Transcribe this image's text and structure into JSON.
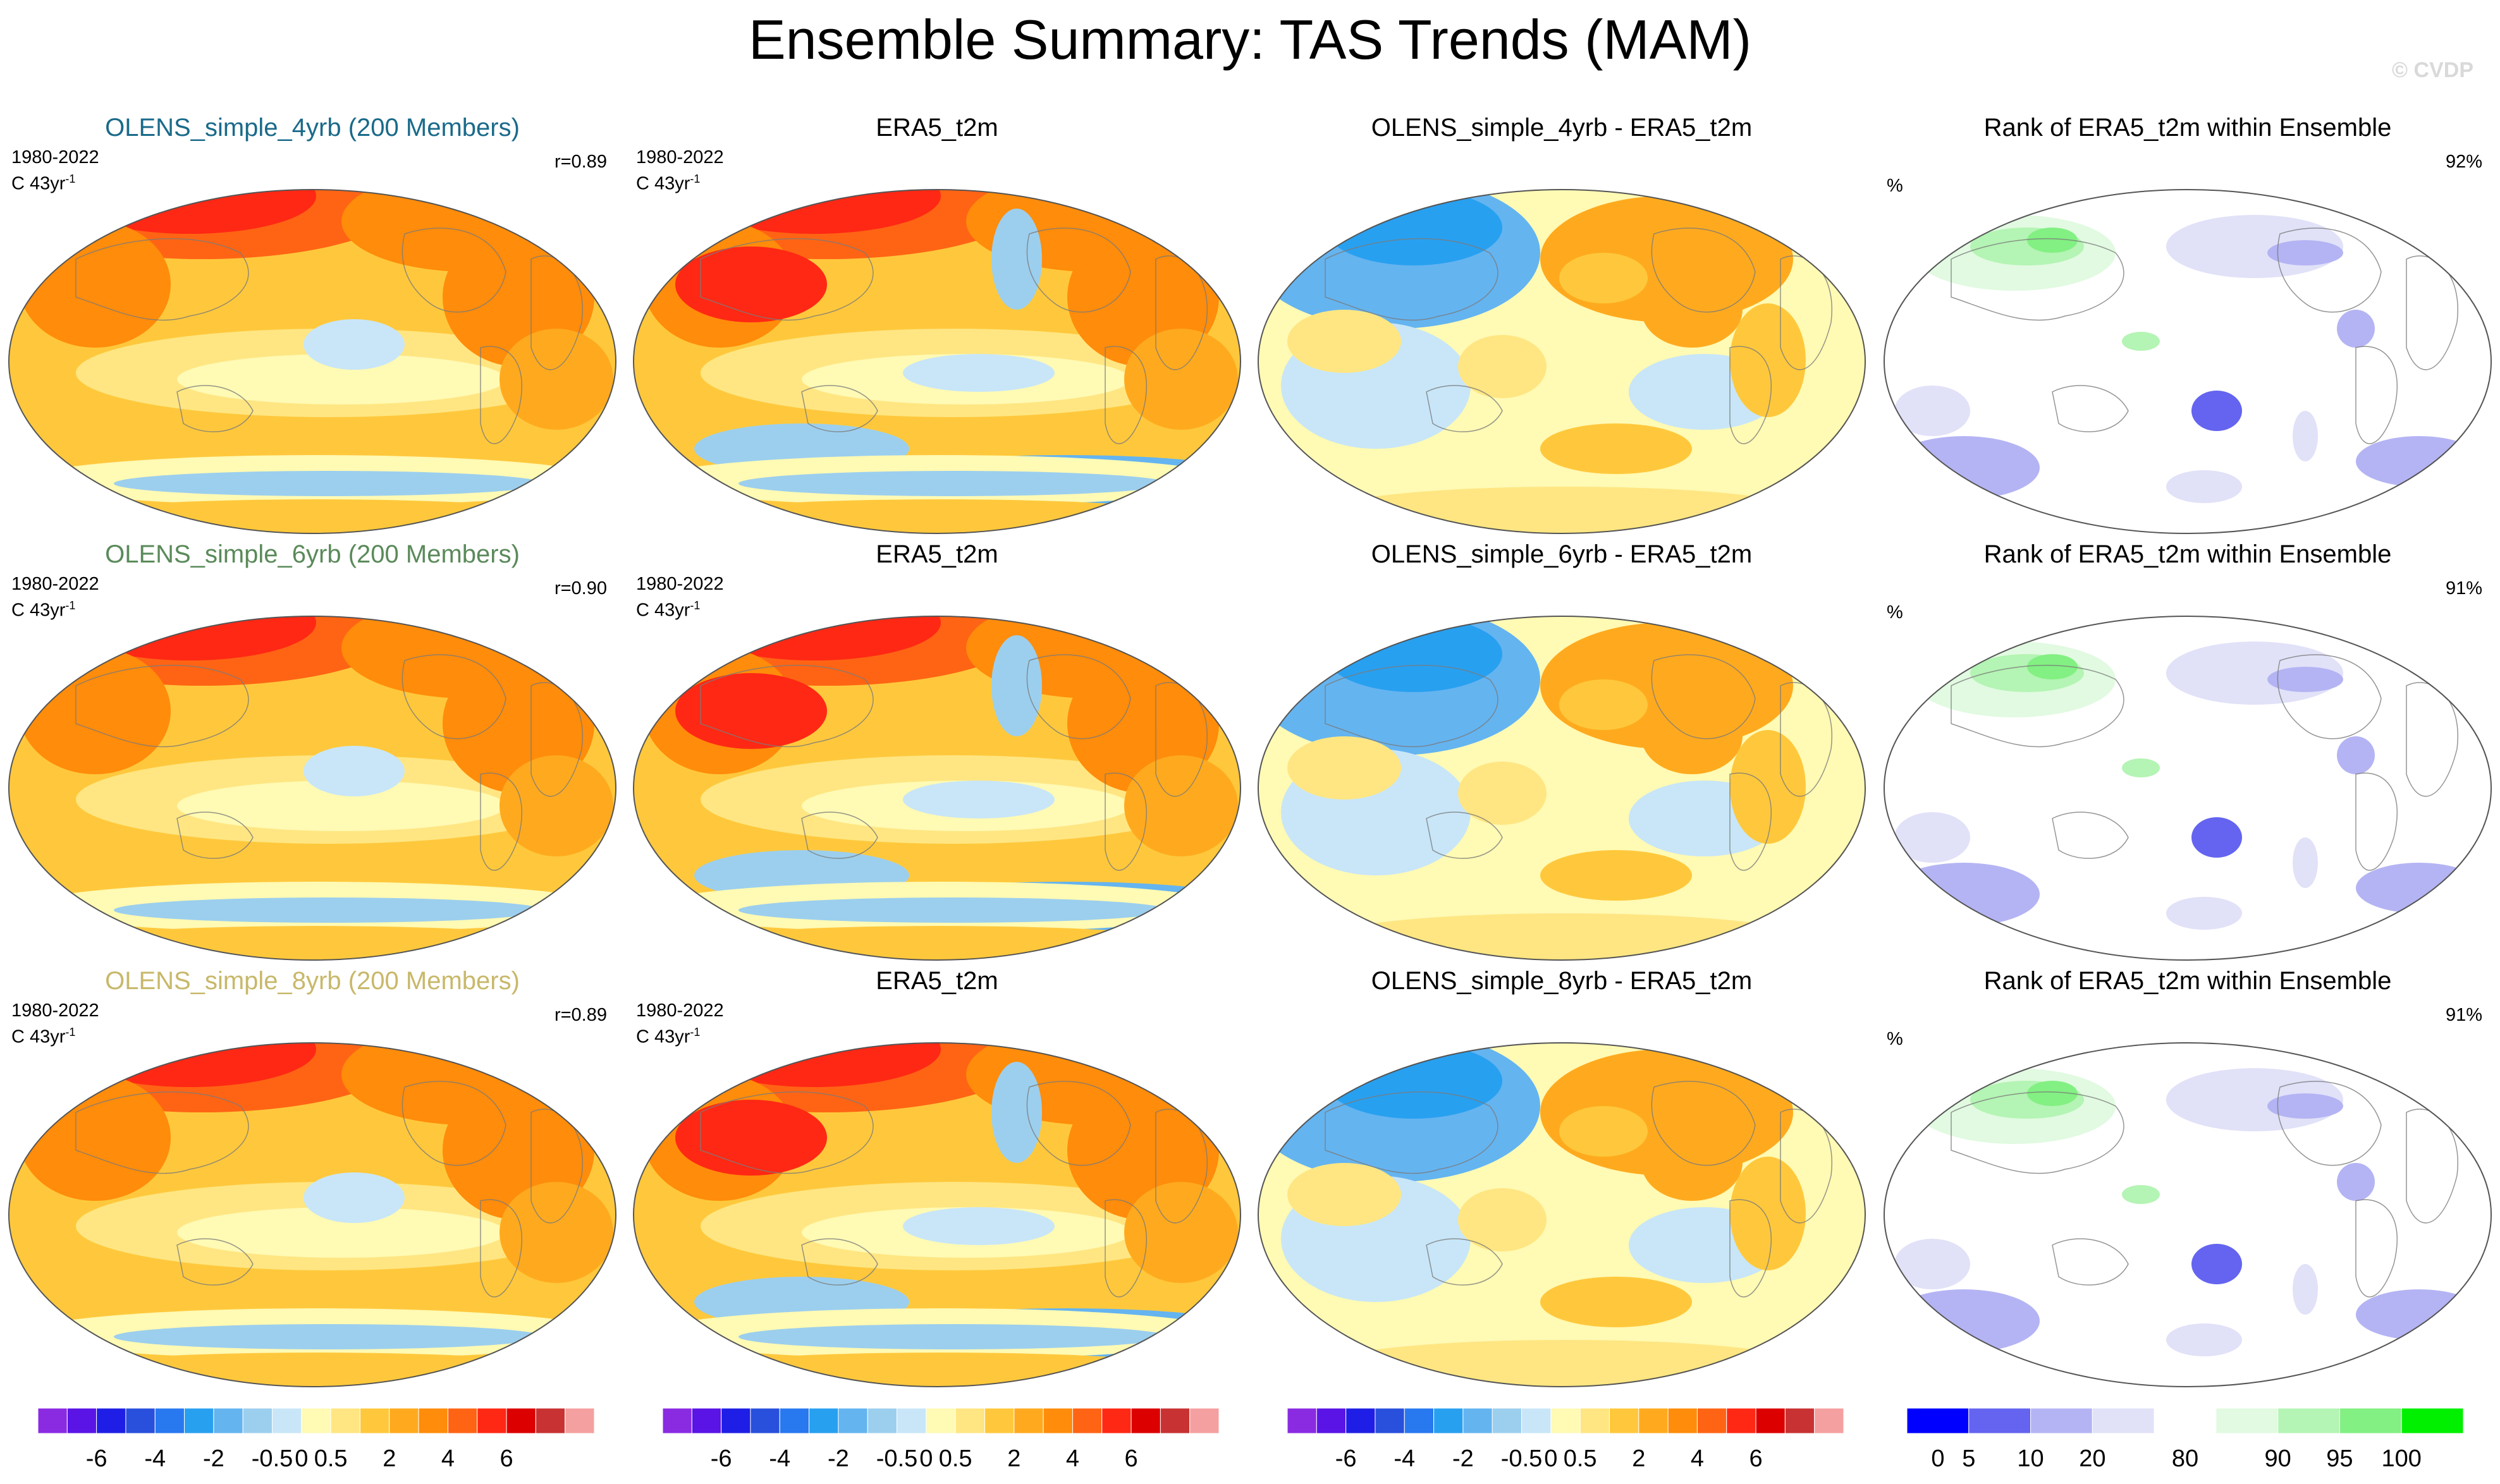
{
  "title": "Ensemble Summary: TAS Trends (MAM)",
  "watermark": "© CVDP",
  "rows": [
    {
      "panels": [
        {
          "title": "OLENS_simple_4yrb (200 Members)",
          "title_color": "#1a6a8a",
          "period": "1980-2022",
          "units": "C 43yr",
          "units_sup": "-1",
          "stat": "r=0.89",
          "kind": "ens"
        },
        {
          "title": "ERA5_t2m",
          "title_color": "#000000",
          "period": "1980-2022",
          "units": "C 43yr",
          "units_sup": "-1",
          "stat": "",
          "kind": "obs"
        },
        {
          "title": "OLENS_simple_4yrb - ERA5_t2m",
          "title_color": "#000000",
          "period": "",
          "units": "",
          "units_sup": "",
          "stat": "",
          "kind": "diff"
        },
        {
          "title": "Rank of ERA5_t2m within Ensemble",
          "title_color": "#000000",
          "pct_label": "%",
          "stat": "92%",
          "kind": "rank"
        }
      ]
    },
    {
      "panels": [
        {
          "title": "OLENS_simple_6yrb (200 Members)",
          "title_color": "#5a8a5a",
          "period": "1980-2022",
          "units": "C 43yr",
          "units_sup": "-1",
          "stat": "r=0.90",
          "kind": "ens"
        },
        {
          "title": "ERA5_t2m",
          "title_color": "#000000",
          "period": "1980-2022",
          "units": "C 43yr",
          "units_sup": "-1",
          "stat": "",
          "kind": "obs"
        },
        {
          "title": "OLENS_simple_6yrb - ERA5_t2m",
          "title_color": "#000000",
          "period": "",
          "units": "",
          "units_sup": "",
          "stat": "",
          "kind": "diff"
        },
        {
          "title": "Rank of ERA5_t2m within Ensemble",
          "title_color": "#000000",
          "pct_label": "%",
          "stat": "91%",
          "kind": "rank"
        }
      ]
    },
    {
      "panels": [
        {
          "title": "OLENS_simple_8yrb (200 Members)",
          "title_color": "#c8b86a",
          "period": "1980-2022",
          "units": "C 43yr",
          "units_sup": "-1",
          "stat": "r=0.89",
          "kind": "ens"
        },
        {
          "title": "ERA5_t2m",
          "title_color": "#000000",
          "period": "1980-2022",
          "units": "C 43yr",
          "units_sup": "-1",
          "stat": "",
          "kind": "obs"
        },
        {
          "title": "OLENS_simple_8yrb - ERA5_t2m",
          "title_color": "#000000",
          "period": "",
          "units": "",
          "units_sup": "",
          "stat": "",
          "kind": "diff"
        },
        {
          "title": "Rank of ERA5_t2m within Ensemble",
          "title_color": "#000000",
          "pct_label": "%",
          "stat": "91%",
          "kind": "rank"
        }
      ]
    }
  ],
  "chart_data": {
    "type": "heatmap",
    "projection": "Robinson (Pacific-centered)",
    "trend_colorbar": {
      "colors": [
        "#8a2be2",
        "#5a14e6",
        "#1e1ee6",
        "#2850dc",
        "#2878f0",
        "#28a0f0",
        "#64b4f0",
        "#9ccfee",
        "#c8e6f8",
        "#fffab4",
        "#ffe682",
        "#ffc83c",
        "#ffaa1e",
        "#ff8c0a",
        "#ff6414",
        "#ff2814",
        "#dc0000",
        "#c83232",
        "#f5a0a0"
      ],
      "tick_labels": [
        "-6",
        "-4",
        "-2",
        "-0.5",
        "0",
        "0.5",
        "2",
        "4",
        "6"
      ],
      "tick_boundaries": [
        2,
        4,
        6,
        8,
        9,
        10,
        12,
        14,
        16
      ]
    },
    "rank_colorbar": {
      "colors": [
        "#0000ff",
        "#6464f0",
        "#b4b4f4",
        "#e1e1f8",
        "#ffffff",
        "#e1fae1",
        "#b4f4b4",
        "#82f082",
        "#00f000"
      ],
      "tick_labels": [
        "0",
        "5",
        "10",
        "20",
        "80",
        "90",
        "95",
        "100"
      ],
      "tick_boundaries": [
        0.5,
        1,
        2,
        3,
        4.5,
        6,
        7,
        8
      ]
    }
  }
}
